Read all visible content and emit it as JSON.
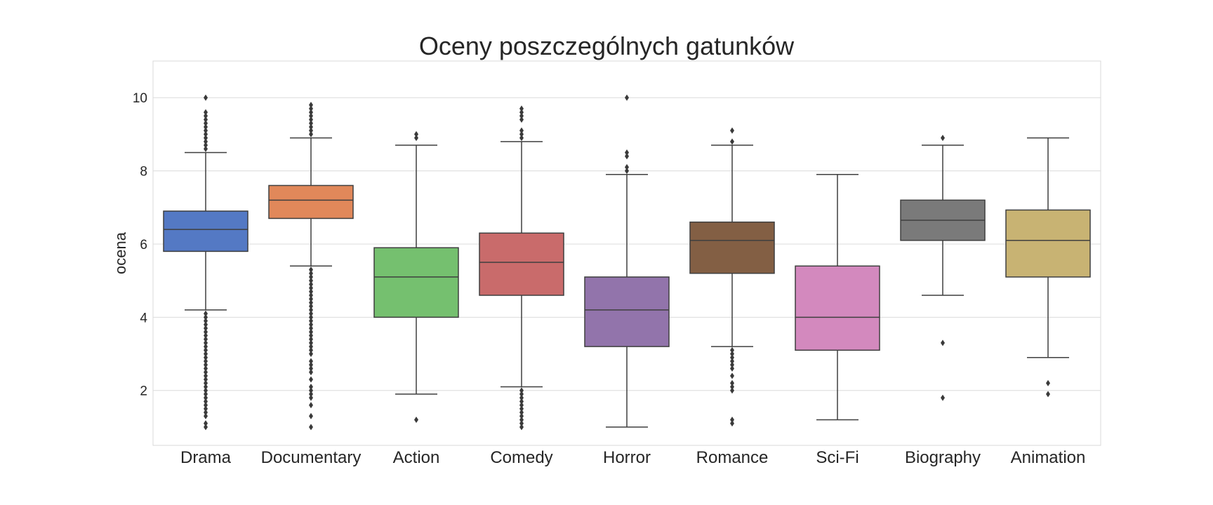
{
  "chart_data": {
    "type": "box",
    "title": "Oceny poszczególnych gatunków",
    "xlabel": "",
    "ylabel": "ocena",
    "ylim": [
      0.5,
      11.0
    ],
    "yticks": [
      2,
      4,
      6,
      8,
      10
    ],
    "grid": true,
    "categories": [
      "Drama",
      "Documentary",
      "Action",
      "Comedy",
      "Horror",
      "Romance",
      "Sci-Fi",
      "Biography",
      "Animation"
    ],
    "boxes": [
      {
        "name": "Drama",
        "color": "#5479c4",
        "whisker_low": 4.2,
        "q1": 5.8,
        "median": 6.4,
        "q3": 6.9,
        "whisker_high": 8.5,
        "outliers": [
          10.0,
          9.6,
          9.5,
          9.4,
          9.3,
          9.2,
          9.1,
          9.0,
          8.9,
          8.8,
          8.7,
          8.6,
          4.1,
          4.0,
          3.9,
          3.8,
          3.7,
          3.6,
          3.5,
          3.4,
          3.3,
          3.2,
          3.1,
          3.0,
          2.9,
          2.8,
          2.7,
          2.6,
          2.5,
          2.4,
          2.3,
          2.2,
          2.1,
          2.0,
          1.9,
          1.8,
          1.7,
          1.6,
          1.5,
          1.4,
          1.3,
          1.1,
          1.0
        ]
      },
      {
        "name": "Documentary",
        "color": "#e1885a",
        "whisker_low": 5.4,
        "q1": 6.7,
        "median": 7.2,
        "q3": 7.6,
        "whisker_high": 8.9,
        "outliers": [
          9.8,
          9.7,
          9.6,
          9.5,
          9.4,
          9.3,
          9.2,
          9.1,
          9.0,
          5.3,
          5.2,
          5.1,
          5.0,
          4.9,
          4.8,
          4.7,
          4.6,
          4.5,
          4.4,
          4.3,
          4.2,
          4.1,
          4.0,
          3.9,
          3.8,
          3.7,
          3.6,
          3.5,
          3.4,
          3.3,
          3.2,
          3.1,
          3.0,
          2.8,
          2.7,
          2.6,
          2.5,
          2.3,
          2.1,
          2.0,
          1.9,
          1.8,
          1.6,
          1.3,
          1.0
        ]
      },
      {
        "name": "Action",
        "color": "#75c06f",
        "whisker_low": 1.9,
        "q1": 4.0,
        "median": 5.1,
        "q3": 5.9,
        "whisker_high": 8.7,
        "outliers": [
          9.0,
          8.9,
          1.2
        ]
      },
      {
        "name": "Comedy",
        "color": "#c96b6b",
        "whisker_low": 2.1,
        "q1": 4.6,
        "median": 5.5,
        "q3": 6.3,
        "whisker_high": 8.8,
        "outliers": [
          9.7,
          9.6,
          9.5,
          9.4,
          9.1,
          9.0,
          8.9,
          2.0,
          1.9,
          1.8,
          1.7,
          1.6,
          1.5,
          1.4,
          1.3,
          1.2,
          1.1,
          1.0
        ]
      },
      {
        "name": "Horror",
        "color": "#9274ab",
        "whisker_low": 1.0,
        "q1": 3.2,
        "median": 4.2,
        "q3": 5.1,
        "whisker_high": 7.9,
        "outliers": [
          10.0,
          8.5,
          8.4,
          8.1,
          8.0
        ]
      },
      {
        "name": "Romance",
        "color": "#835f44",
        "whisker_low": 3.2,
        "q1": 5.2,
        "median": 6.1,
        "q3": 6.6,
        "whisker_high": 8.7,
        "outliers": [
          9.1,
          8.8,
          3.1,
          3.0,
          2.9,
          2.8,
          2.7,
          2.6,
          2.4,
          2.2,
          2.1,
          2.0,
          1.2,
          1.1
        ]
      },
      {
        "name": "Sci-Fi",
        "color": "#d389be",
        "whisker_low": 1.2,
        "q1": 3.1,
        "median": 4.0,
        "q3": 5.4,
        "whisker_high": 7.9,
        "outliers": []
      },
      {
        "name": "Biography",
        "color": "#7a7a7a",
        "whisker_low": 4.6,
        "q1": 6.1,
        "median": 6.65,
        "q3": 7.2,
        "whisker_high": 8.7,
        "outliers": [
          8.9,
          3.3,
          1.8
        ]
      },
      {
        "name": "Animation",
        "color": "#c8b373",
        "whisker_low": 2.9,
        "q1": 5.1,
        "median": 6.1,
        "q3": 6.93,
        "whisker_high": 8.9,
        "outliers": [
          2.2,
          1.9
        ]
      }
    ]
  }
}
